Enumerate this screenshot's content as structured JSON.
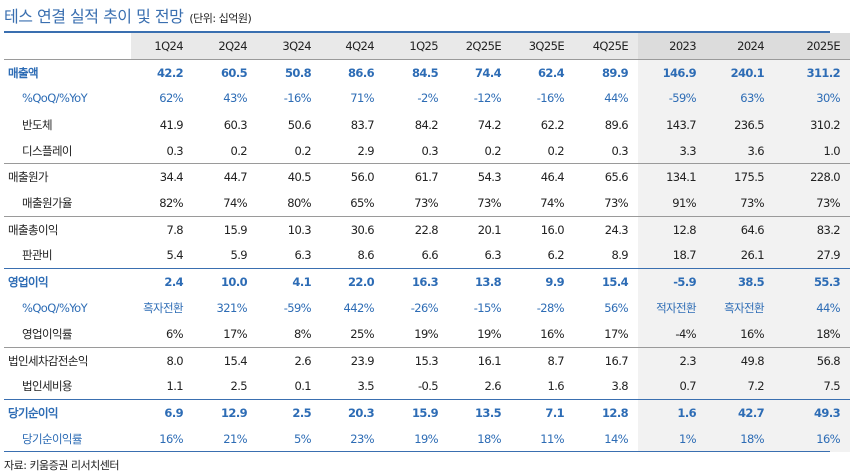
{
  "title": "테스 연결 실적 추이 및 전망",
  "unit": "(단위: 십억원)",
  "columns": [
    "1Q24",
    "2Q24",
    "3Q24",
    "4Q24",
    "1Q25",
    "2Q25E",
    "3Q25E",
    "4Q25E",
    "2023",
    "2024",
    "2025E"
  ],
  "rows": [
    {
      "label": "매출액",
      "values": [
        "42.2",
        "60.5",
        "50.8",
        "86.6",
        "84.5",
        "74.4",
        "62.4",
        "89.9",
        "146.9",
        "240.1",
        "311.2"
      ]
    },
    {
      "label": "%QoQ/%YoY",
      "values": [
        "62%",
        "43%",
        "-16%",
        "71%",
        "-2%",
        "-12%",
        "-16%",
        "44%",
        "-59%",
        "63%",
        "30%"
      ]
    },
    {
      "label": "반도체",
      "values": [
        "41.9",
        "60.3",
        "50.6",
        "83.7",
        "84.2",
        "74.2",
        "62.2",
        "89.6",
        "143.7",
        "236.5",
        "310.2"
      ]
    },
    {
      "label": "디스플레이",
      "values": [
        "0.3",
        "0.2",
        "0.2",
        "2.9",
        "0.3",
        "0.2",
        "0.2",
        "0.3",
        "3.3",
        "3.6",
        "1.0"
      ]
    },
    {
      "label": "매출원가",
      "values": [
        "34.4",
        "44.7",
        "40.5",
        "56.0",
        "61.7",
        "54.3",
        "46.4",
        "65.6",
        "134.1",
        "175.5",
        "228.0"
      ]
    },
    {
      "label": "매출원가율",
      "values": [
        "82%",
        "74%",
        "80%",
        "65%",
        "73%",
        "73%",
        "74%",
        "73%",
        "91%",
        "73%",
        "73%"
      ]
    },
    {
      "label": "매출총이익",
      "values": [
        "7.8",
        "15.9",
        "10.3",
        "30.6",
        "22.8",
        "20.1",
        "16.0",
        "24.3",
        "12.8",
        "64.6",
        "83.2"
      ]
    },
    {
      "label": "판관비",
      "values": [
        "5.4",
        "5.9",
        "6.3",
        "8.6",
        "6.6",
        "6.3",
        "6.2",
        "8.9",
        "18.7",
        "26.1",
        "27.9"
      ]
    },
    {
      "label": "영업이익",
      "values": [
        "2.4",
        "10.0",
        "4.1",
        "22.0",
        "16.3",
        "13.8",
        "9.9",
        "15.4",
        "-5.9",
        "38.5",
        "55.3"
      ]
    },
    {
      "label": "%QoQ/%YoY",
      "values": [
        "흑자전환",
        "321%",
        "-59%",
        "442%",
        "-26%",
        "-15%",
        "-28%",
        "56%",
        "적자전환",
        "흑자전환",
        "44%"
      ]
    },
    {
      "label": "영업이익률",
      "values": [
        "6%",
        "17%",
        "8%",
        "25%",
        "19%",
        "19%",
        "16%",
        "17%",
        "-4%",
        "16%",
        "18%"
      ]
    },
    {
      "label": "법인세차감전손익",
      "values": [
        "8.0",
        "15.4",
        "2.6",
        "23.9",
        "15.3",
        "16.1",
        "8.7",
        "16.7",
        "2.3",
        "49.8",
        "56.8"
      ]
    },
    {
      "label": "법인세비용",
      "values": [
        "1.1",
        "2.5",
        "0.1",
        "3.5",
        "-0.5",
        "2.6",
        "1.6",
        "3.8",
        "0.7",
        "7.2",
        "7.5"
      ]
    },
    {
      "label": "당기순이익",
      "values": [
        "6.9",
        "12.9",
        "2.5",
        "20.3",
        "15.9",
        "13.5",
        "7.1",
        "12.8",
        "1.6",
        "42.7",
        "49.3"
      ]
    },
    {
      "label": "당기순이익률",
      "values": [
        "16%",
        "21%",
        "5%",
        "23%",
        "19%",
        "18%",
        "11%",
        "14%",
        "1%",
        "18%",
        "16%"
      ]
    }
  ],
  "source": "자료: 키움증권 리서치센터"
}
